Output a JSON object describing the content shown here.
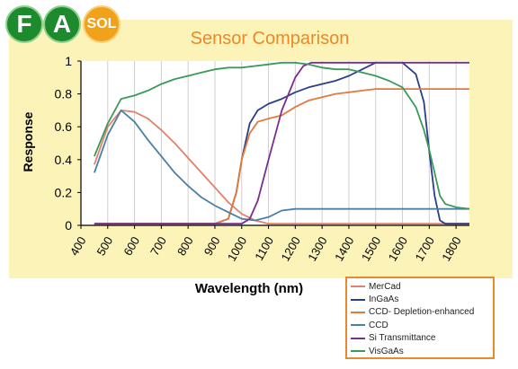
{
  "logo": {
    "letter1": "F",
    "letter2": "A",
    "sol": "SOL"
  },
  "chart_data": {
    "type": "line",
    "title": "Sensor Comparison",
    "xlabel": "Wavelength (nm)",
    "ylabel": "Response",
    "xlim": [
      400,
      1850
    ],
    "ylim": [
      0,
      1
    ],
    "xticks": [
      400,
      500,
      600,
      700,
      800,
      900,
      1000,
      1100,
      1200,
      1300,
      1400,
      1500,
      1600,
      1700,
      1800
    ],
    "yticks": [
      0,
      0.2,
      0.4,
      0.6,
      0.8,
      1
    ],
    "ytick_labels": [
      "0",
      "0.2",
      "0.4",
      "0.6",
      "0.8",
      "1"
    ],
    "grid": "vertical",
    "legend_position": "bottom-right",
    "series": [
      {
        "name": "MerCad",
        "color": "#e0836a",
        "x": [
          450,
          500,
          550,
          600,
          650,
          700,
          750,
          800,
          850,
          900,
          950,
          1000,
          1050,
          1100,
          1150,
          1200,
          1300,
          1400,
          1500,
          1600,
          1700,
          1800,
          1850
        ],
        "y": [
          0.37,
          0.6,
          0.7,
          0.69,
          0.65,
          0.58,
          0.5,
          0.41,
          0.32,
          0.23,
          0.14,
          0.07,
          0.03,
          0.01,
          0.01,
          0.01,
          0.01,
          0.01,
          0.01,
          0.01,
          0.01,
          0.01,
          0.01
        ]
      },
      {
        "name": "InGaAs",
        "color": "#2c3e8a",
        "x": [
          450,
          800,
          900,
          950,
          980,
          1000,
          1030,
          1060,
          1100,
          1150,
          1200,
          1250,
          1300,
          1350,
          1400,
          1450,
          1500,
          1550,
          1600,
          1650,
          1680,
          1700,
          1720,
          1740,
          1760,
          1800,
          1850
        ],
        "y": [
          0.01,
          0.01,
          0.01,
          0.04,
          0.2,
          0.4,
          0.62,
          0.7,
          0.74,
          0.77,
          0.81,
          0.84,
          0.86,
          0.88,
          0.91,
          0.95,
          0.99,
          0.99,
          0.99,
          0.92,
          0.75,
          0.45,
          0.18,
          0.03,
          0.01,
          0.01,
          0.01
        ]
      },
      {
        "name": "CCD- Depletion-enhanced",
        "color": "#e47a3a",
        "x": [
          450,
          800,
          900,
          950,
          980,
          1000,
          1030,
          1060,
          1100,
          1150,
          1200,
          1250,
          1300,
          1350,
          1400,
          1450,
          1500,
          1550,
          1600,
          1700,
          1800,
          1850
        ],
        "y": [
          0.01,
          0.01,
          0.01,
          0.04,
          0.2,
          0.4,
          0.56,
          0.63,
          0.65,
          0.67,
          0.72,
          0.76,
          0.78,
          0.8,
          0.81,
          0.82,
          0.83,
          0.83,
          0.83,
          0.83,
          0.83,
          0.83
        ]
      },
      {
        "name": "CCD",
        "color": "#4a7fa6",
        "x": [
          450,
          500,
          550,
          600,
          650,
          700,
          750,
          800,
          850,
          900,
          950,
          1000,
          1050,
          1100,
          1150,
          1200,
          1300,
          1400,
          1500,
          1600,
          1700,
          1800,
          1850
        ],
        "y": [
          0.32,
          0.55,
          0.7,
          0.63,
          0.52,
          0.42,
          0.32,
          0.24,
          0.17,
          0.12,
          0.08,
          0.04,
          0.03,
          0.05,
          0.09,
          0.1,
          0.1,
          0.1,
          0.1,
          0.1,
          0.1,
          0.1,
          0.1
        ]
      },
      {
        "name": "Si Transmittance",
        "color": "#7b2d8e",
        "x": [
          450,
          900,
          1000,
          1030,
          1060,
          1100,
          1150,
          1200,
          1230,
          1260,
          1300,
          1400,
          1500,
          1600,
          1700,
          1800,
          1850
        ],
        "y": [
          0.01,
          0.01,
          0.01,
          0.04,
          0.15,
          0.4,
          0.7,
          0.9,
          0.97,
          0.99,
          0.99,
          0.99,
          0.99,
          0.99,
          0.99,
          0.99,
          0.99
        ]
      },
      {
        "name": "VisGaAs",
        "color": "#3a9a5a",
        "x": [
          450,
          500,
          550,
          600,
          650,
          700,
          750,
          800,
          850,
          900,
          950,
          1000,
          1050,
          1100,
          1150,
          1200,
          1250,
          1300,
          1350,
          1400,
          1450,
          1500,
          1550,
          1600,
          1650,
          1680,
          1700,
          1720,
          1740,
          1760,
          1800,
          1850
        ],
        "y": [
          0.42,
          0.62,
          0.77,
          0.79,
          0.82,
          0.86,
          0.89,
          0.91,
          0.93,
          0.95,
          0.96,
          0.96,
          0.97,
          0.98,
          0.99,
          0.99,
          0.98,
          0.96,
          0.95,
          0.95,
          0.93,
          0.91,
          0.88,
          0.84,
          0.72,
          0.58,
          0.46,
          0.32,
          0.18,
          0.13,
          0.11,
          0.1
        ]
      }
    ]
  }
}
